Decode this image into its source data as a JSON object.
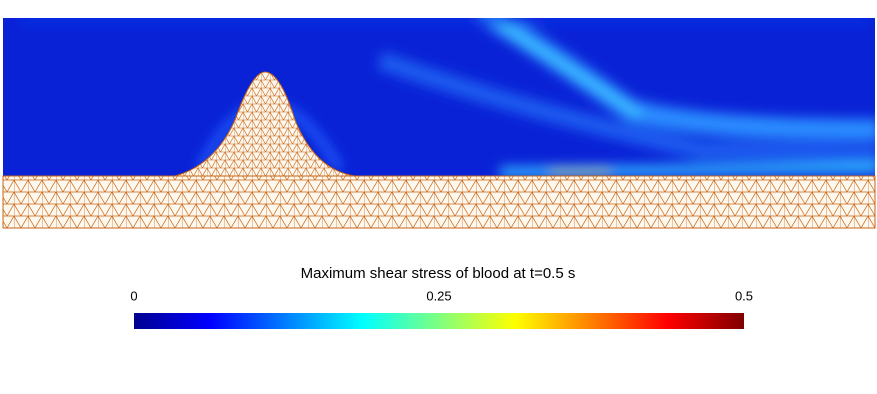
{
  "chart_data": {
    "type": "field",
    "title": "Maximum shear stress of blood at t=0.5 s",
    "colorbar": {
      "lim": [
        0,
        0.5
      ],
      "ticks": [
        0,
        0.25,
        0.5
      ]
    }
  }
}
